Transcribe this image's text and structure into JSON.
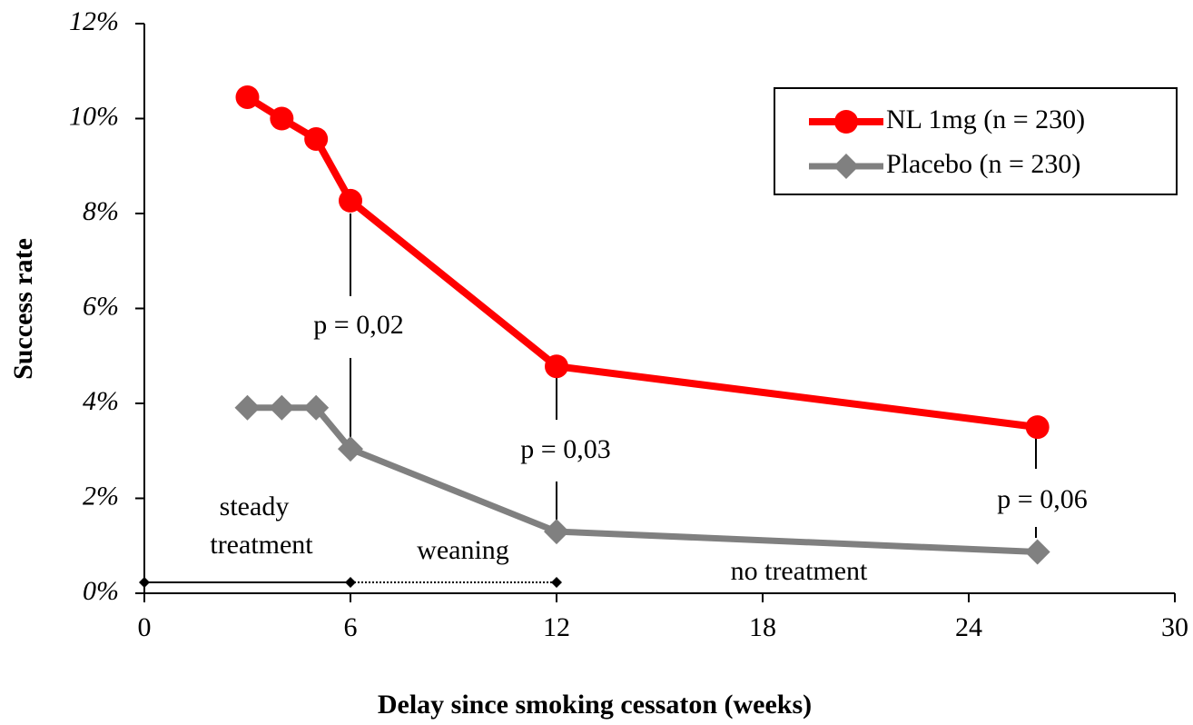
{
  "chart_data": {
    "type": "line",
    "xlabel": "Delay since smoking cessaton (weeks)",
    "ylabel": "Success rate",
    "xlim": [
      0,
      30
    ],
    "xticks": [
      0,
      6,
      12,
      18,
      24,
      30
    ],
    "ylim": [
      0,
      12
    ],
    "yticks": [
      {
        "value": 0,
        "label": "0%"
      },
      {
        "value": 2,
        "label": "2%"
      },
      {
        "value": 4,
        "label": "4%"
      },
      {
        "value": 6,
        "label": "6%"
      },
      {
        "value": 8,
        "label": "8%"
      },
      {
        "value": 10,
        "label": "10%"
      },
      {
        "value": 12,
        "label": "12%"
      }
    ],
    "legend": "upper right",
    "series": [
      {
        "name": "NL 1mg (n = 230)",
        "color": "#ff0000",
        "marker": "circle",
        "x": [
          3,
          4,
          5,
          6,
          12,
          26
        ],
        "values": [
          10.45,
          10.0,
          9.57,
          8.27,
          4.78,
          3.5
        ]
      },
      {
        "name": "Placebo (n = 230)",
        "color": "#808080",
        "marker": "diamond",
        "x": [
          3,
          4,
          5,
          6,
          12,
          26
        ],
        "values": [
          3.91,
          3.91,
          3.91,
          3.04,
          1.3,
          0.87
        ]
      }
    ],
    "annotations": [
      "p = 0,02",
      "p = 0,03",
      "p = 0,06",
      "steady",
      "treatment",
      "weaning",
      "no treatment"
    ]
  }
}
